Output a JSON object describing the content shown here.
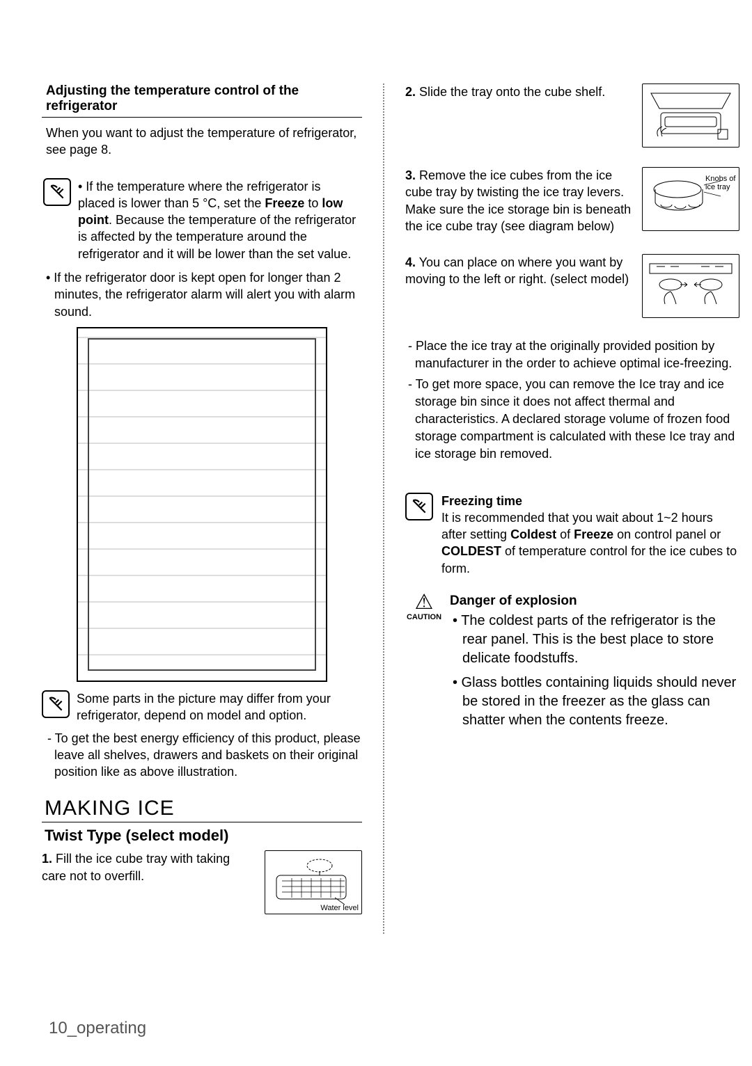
{
  "left": {
    "subhead": "Adjusting the temperature control of the refrigerator",
    "intro": "When you want to adjust the temperature of refrigerator, see page 8.",
    "note1_html": "• If the temperature where the refrigerator is placed is lower than 5 °C, set the <b>Freeze</b> to <b>low point</b>. Because the temperature of the refrigerator is affected by the temperature around the refrigerator and it will be lower than the set value.",
    "note2": "• If the refrigerator door is kept open for longer than 2 minutes, the refrigerator alarm will alert you with alarm sound.",
    "figure_note": "Some parts in the picture may differ from your refrigerator, depend on model and option.",
    "dash_note": "- To get the best energy efficiency of this product, please leave all shelves, drawers and baskets on their original position like as above illustration.",
    "section_title": "MAKING ICE",
    "model_line": "Twist Type (select model)",
    "step1_num": "1.",
    "step1": "Fill the ice cube tray with taking care not to overfill.",
    "fig1_label": "Water level"
  },
  "right": {
    "step2_num": "2.",
    "step2": "Slide the tray onto the cube shelf.",
    "step3_num": "3.",
    "step3": "Remove the ice cubes from the ice cube tray by twisting the ice tray levers. Make sure the ice storage bin is beneath the ice cube tray (see diagram below)",
    "fig3_label": "Knobs of ice tray",
    "step4_num": "4.",
    "step4": "You can place on where you want by moving to the left or right. (select model)",
    "bullets": [
      "- Place the ice tray at the originally provided position by manufacturer in the order to achieve optimal ice-freezing.",
      "- To get more space, you can remove the Ice tray and ice storage bin since it does not affect thermal and characteristics. A declared storage volume of frozen food storage compartment is calculated with these Ice tray and ice storage bin removed."
    ],
    "freeze_title": "Freezing time",
    "freeze_body_html": "It is recommended that you wait about 1~2 hours after setting <b>Coldest</b> of <b>Freeze</b> on control panel or <b>COLDEST</b> of temperature control for the ice cubes to form.",
    "caution_icon_label": "CAUTION",
    "caution_title": "Danger of explosion",
    "caution_b1": "• The coldest parts of the refrigerator is the rear panel. This is the best place to store delicate foodstuffs.",
    "caution_b2": "• Glass bottles containing liquids should never be stored in the freezer as the glass can shatter when the contents freeze."
  },
  "footer": "10_operating"
}
